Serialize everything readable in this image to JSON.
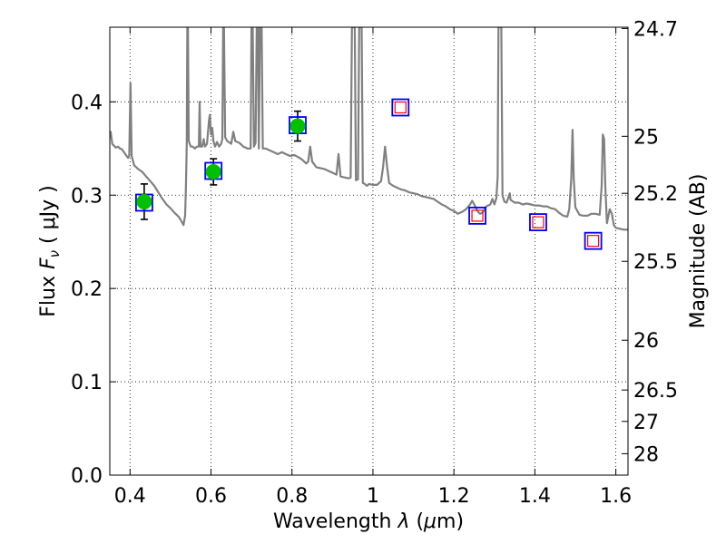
{
  "chart_data": {
    "type": "scatter",
    "x_axis": {
      "label_prefix": "Wavelength  ",
      "label_symbol": "λ",
      "label_unit_open": " (",
      "label_unit_mu": "μ",
      "label_unit_close": "m)",
      "range": [
        0.35,
        1.63
      ],
      "ticks": [
        0.4,
        0.6,
        0.8,
        1.0,
        1.2,
        1.4,
        1.6
      ],
      "tick_labels": [
        "0.4",
        "0.6",
        "0.8",
        "1",
        "1.2",
        "1.4",
        "1.6"
      ]
    },
    "y_axis": {
      "label_prefix": "Flux  ",
      "label_symbol": "F",
      "label_sub": "ν",
      "label_unit": "  ( μJy )",
      "range": [
        0.0,
        0.48
      ],
      "ticks": [
        0.0,
        0.1,
        0.2,
        0.3,
        0.4
      ],
      "tick_labels": [
        "0.0",
        "0.1",
        "0.2",
        "0.3",
        "0.4"
      ]
    },
    "y2_axis": {
      "label": "Magnitude (AB)",
      "ticks": [
        {
          "mag": 24.7,
          "label": "24.7"
        },
        {
          "mag": 25.0,
          "label": "25"
        },
        {
          "mag": 25.2,
          "label": "25.2"
        },
        {
          "mag": 25.5,
          "label": "25.5"
        },
        {
          "mag": 26.0,
          "label": "26"
        },
        {
          "mag": 26.5,
          "label": "26.5"
        },
        {
          "mag": 27.0,
          "label": "27"
        },
        {
          "mag": 28.0,
          "label": "28"
        }
      ]
    },
    "grid": true,
    "series": [
      {
        "kind": "model_spectrum",
        "color": "#808080",
        "points": [
          [
            0.35,
            0.365
          ],
          [
            0.352,
            0.368
          ],
          [
            0.356,
            0.355
          ],
          [
            0.36,
            0.353
          ],
          [
            0.365,
            0.351
          ],
          [
            0.37,
            0.352
          ],
          [
            0.375,
            0.35
          ],
          [
            0.38,
            0.349
          ],
          [
            0.385,
            0.346
          ],
          [
            0.39,
            0.343
          ],
          [
            0.395,
            0.34
          ],
          [
            0.398,
            0.342
          ],
          [
            0.401,
            0.42
          ],
          [
            0.404,
            0.342
          ],
          [
            0.41,
            0.332
          ],
          [
            0.42,
            0.328
          ],
          [
            0.43,
            0.325
          ],
          [
            0.44,
            0.32
          ],
          [
            0.45,
            0.315
          ],
          [
            0.46,
            0.31
          ],
          [
            0.47,
            0.303
          ],
          [
            0.48,
            0.296
          ],
          [
            0.49,
            0.29
          ],
          [
            0.5,
            0.286
          ],
          [
            0.51,
            0.281
          ],
          [
            0.52,
            0.277
          ],
          [
            0.527,
            0.272
          ],
          [
            0.532,
            0.268
          ],
          [
            0.536,
            0.278
          ],
          [
            0.538,
            0.31
          ],
          [
            0.54,
            0.355
          ],
          [
            0.5415,
            0.48
          ],
          [
            0.543,
            0.48
          ],
          [
            0.545,
            0.358
          ],
          [
            0.55,
            0.352
          ],
          [
            0.555,
            0.352
          ],
          [
            0.56,
            0.35
          ],
          [
            0.565,
            0.352
          ],
          [
            0.57,
            0.352
          ],
          [
            0.572,
            0.4
          ],
          [
            0.574,
            0.352
          ],
          [
            0.578,
            0.352
          ],
          [
            0.582,
            0.36
          ],
          [
            0.585,
            0.352
          ],
          [
            0.59,
            0.355
          ],
          [
            0.595,
            0.38
          ],
          [
            0.597,
            0.386
          ],
          [
            0.6,
            0.365
          ],
          [
            0.603,
            0.372
          ],
          [
            0.606,
            0.358
          ],
          [
            0.61,
            0.352
          ],
          [
            0.615,
            0.357
          ],
          [
            0.62,
            0.352
          ],
          [
            0.625,
            0.355
          ],
          [
            0.628,
            0.36
          ],
          [
            0.63,
            0.48
          ],
          [
            0.632,
            0.48
          ],
          [
            0.635,
            0.362
          ],
          [
            0.64,
            0.358
          ],
          [
            0.65,
            0.355
          ],
          [
            0.655,
            0.368
          ],
          [
            0.66,
            0.358
          ],
          [
            0.67,
            0.356
          ],
          [
            0.68,
            0.352
          ],
          [
            0.69,
            0.35
          ],
          [
            0.698,
            0.35
          ],
          [
            0.7,
            0.48
          ],
          [
            0.703,
            0.48
          ],
          [
            0.706,
            0.352
          ],
          [
            0.71,
            0.356
          ],
          [
            0.713,
            0.48
          ],
          [
            0.716,
            0.48
          ],
          [
            0.718,
            0.35
          ],
          [
            0.721,
            0.48
          ],
          [
            0.725,
            0.48
          ],
          [
            0.728,
            0.35
          ],
          [
            0.735,
            0.35
          ],
          [
            0.745,
            0.348
          ],
          [
            0.755,
            0.346
          ],
          [
            0.765,
            0.344
          ],
          [
            0.775,
            0.346
          ],
          [
            0.785,
            0.344
          ],
          [
            0.795,
            0.342
          ],
          [
            0.805,
            0.343
          ],
          [
            0.815,
            0.341
          ],
          [
            0.825,
            0.338
          ],
          [
            0.835,
            0.334
          ],
          [
            0.84,
            0.336
          ],
          [
            0.845,
            0.352
          ],
          [
            0.85,
            0.336
          ],
          [
            0.86,
            0.33
          ],
          [
            0.87,
            0.329
          ],
          [
            0.88,
            0.328
          ],
          [
            0.89,
            0.326
          ],
          [
            0.9,
            0.324
          ],
          [
            0.91,
            0.322
          ],
          [
            0.915,
            0.344
          ],
          [
            0.92,
            0.32
          ],
          [
            0.93,
            0.319
          ],
          [
            0.94,
            0.318
          ],
          [
            0.945,
            0.319
          ],
          [
            0.948,
            0.48
          ],
          [
            0.955,
            0.48
          ],
          [
            0.958,
            0.316
          ],
          [
            0.963,
            0.317
          ],
          [
            0.966,
            0.48
          ],
          [
            0.972,
            0.48
          ],
          [
            0.975,
            0.313
          ],
          [
            0.98,
            0.312
          ],
          [
            0.985,
            0.31
          ],
          [
            0.99,
            0.312
          ],
          [
            1.0,
            0.311
          ],
          [
            1.01,
            0.311
          ],
          [
            1.02,
            0.315
          ],
          [
            1.025,
            0.33
          ],
          [
            1.03,
            0.352
          ],
          [
            1.035,
            0.33
          ],
          [
            1.04,
            0.313
          ],
          [
            1.05,
            0.31
          ],
          [
            1.06,
            0.308
          ],
          [
            1.07,
            0.306
          ],
          [
            1.08,
            0.305
          ],
          [
            1.09,
            0.303
          ],
          [
            1.1,
            0.302
          ],
          [
            1.11,
            0.301
          ],
          [
            1.12,
            0.299
          ],
          [
            1.13,
            0.298
          ],
          [
            1.14,
            0.297
          ],
          [
            1.15,
            0.296
          ],
          [
            1.16,
            0.293
          ],
          [
            1.17,
            0.29
          ],
          [
            1.18,
            0.288
          ],
          [
            1.19,
            0.285
          ],
          [
            1.2,
            0.283
          ],
          [
            1.21,
            0.28
          ],
          [
            1.22,
            0.282
          ],
          [
            1.23,
            0.285
          ],
          [
            1.24,
            0.29
          ],
          [
            1.245,
            0.294
          ],
          [
            1.25,
            0.29
          ],
          [
            1.255,
            0.286
          ],
          [
            1.26,
            0.282
          ],
          [
            1.265,
            0.28
          ],
          [
            1.27,
            0.281
          ],
          [
            1.28,
            0.288
          ],
          [
            1.29,
            0.29
          ],
          [
            1.295,
            0.296
          ],
          [
            1.3,
            0.29
          ],
          [
            1.305,
            0.297
          ],
          [
            1.308,
            0.32
          ],
          [
            1.31,
            0.48
          ],
          [
            1.317,
            0.48
          ],
          [
            1.32,
            0.3
          ],
          [
            1.325,
            0.293
          ],
          [
            1.33,
            0.292
          ],
          [
            1.335,
            0.298
          ],
          [
            1.338,
            0.302
          ],
          [
            1.34,
            0.295
          ],
          [
            1.35,
            0.292
          ],
          [
            1.36,
            0.292
          ],
          [
            1.37,
            0.29
          ],
          [
            1.38,
            0.291
          ],
          [
            1.39,
            0.29
          ],
          [
            1.4,
            0.289
          ],
          [
            1.41,
            0.289
          ],
          [
            1.42,
            0.288
          ],
          [
            1.43,
            0.288
          ],
          [
            1.44,
            0.286
          ],
          [
            1.45,
            0.285
          ],
          [
            1.46,
            0.281
          ],
          [
            1.47,
            0.278
          ],
          [
            1.48,
            0.277
          ],
          [
            1.485,
            0.285
          ],
          [
            1.49,
            0.318
          ],
          [
            1.493,
            0.37
          ],
          [
            1.496,
            0.318
          ],
          [
            1.5,
            0.287
          ],
          [
            1.51,
            0.279
          ],
          [
            1.52,
            0.278
          ],
          [
            1.53,
            0.278
          ],
          [
            1.54,
            0.28
          ],
          [
            1.55,
            0.28
          ],
          [
            1.56,
            0.279
          ],
          [
            1.565,
            0.31
          ],
          [
            1.568,
            0.365
          ],
          [
            1.571,
            0.36
          ],
          [
            1.574,
            0.31
          ],
          [
            1.578,
            0.27
          ],
          [
            1.585,
            0.285
          ],
          [
            1.59,
            0.28
          ],
          [
            1.595,
            0.268
          ],
          [
            1.6,
            0.265
          ],
          [
            1.61,
            0.264
          ],
          [
            1.62,
            0.263
          ],
          [
            1.63,
            0.263
          ]
        ]
      },
      {
        "kind": "photometry_detected",
        "marker": "circle",
        "color": "#00c000",
        "points": [
          {
            "x": 0.435,
            "y": 0.293,
            "yerr": 0.019
          },
          {
            "x": 0.606,
            "y": 0.325,
            "yerr": 0.014
          },
          {
            "x": 0.814,
            "y": 0.374,
            "yerr": 0.016
          }
        ]
      },
      {
        "kind": "model_photometry",
        "marker": "square",
        "color": "#0000ff",
        "points": [
          {
            "x": 0.435,
            "y": 0.292
          },
          {
            "x": 0.606,
            "y": 0.326
          },
          {
            "x": 0.814,
            "y": 0.375
          },
          {
            "x": 1.068,
            "y": 0.394
          },
          {
            "x": 1.258,
            "y": 0.278
          },
          {
            "x": 1.408,
            "y": 0.271
          },
          {
            "x": 1.544,
            "y": 0.251
          }
        ]
      },
      {
        "kind": "photometry_nondetection",
        "marker": "square",
        "color": "#ff0000",
        "points": [
          {
            "x": 1.068,
            "y": 0.394
          },
          {
            "x": 1.258,
            "y": 0.278
          },
          {
            "x": 1.408,
            "y": 0.271
          },
          {
            "x": 1.544,
            "y": 0.251
          }
        ]
      }
    ]
  }
}
